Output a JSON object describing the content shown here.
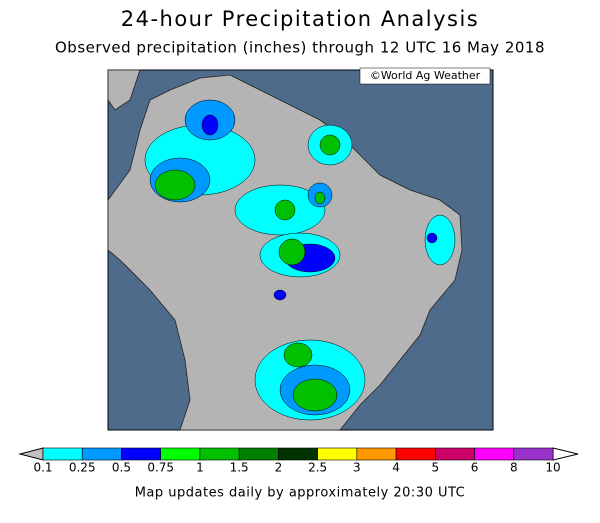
{
  "header": {
    "title": "24-hour Precipitation Analysis",
    "subtitle": "Observed precipitation (inches) through 12 UTC 16 May 2018"
  },
  "map": {
    "credit": "©World Ag Weather"
  },
  "legend": {
    "labels": [
      "0.1",
      "0.25",
      "0.5",
      "0.75",
      "1",
      "1.5",
      "2",
      "2.5",
      "3",
      "4",
      "5",
      "6",
      "8",
      "10"
    ],
    "colors": [
      "#00ffff",
      "#0099ff",
      "#0000ff",
      "#00ff00",
      "#00c000",
      "#008000",
      "#003300",
      "#ffff00",
      "#ff9900",
      "#ff0000",
      "#cc0066",
      "#ff00ff",
      "#9933cc"
    ],
    "below_color": "#c0c0c0",
    "above_color": "#ffffff"
  },
  "footer": {
    "note": "Map updates daily by approximately 20:30 UTC"
  }
}
